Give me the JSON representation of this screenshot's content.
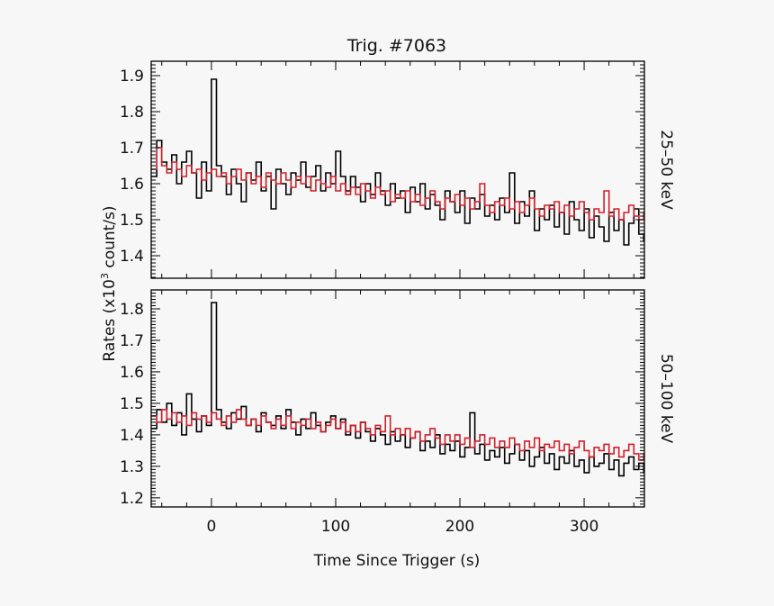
{
  "chart_data": {
    "type": "line",
    "title": "Trig. #7063",
    "xlabel": "Time Since Trigger (s)",
    "ylabel": "Rates (x10³ count/s)",
    "ylabel_parts": {
      "pre": "Rates (x10",
      "sup": "3",
      "post": " count/s)"
    },
    "xlim": [
      -48.5,
      348.5
    ],
    "xticks": [
      0,
      100,
      200,
      300
    ],
    "x_start": -48,
    "bin_width": 4,
    "grid": false,
    "colors": {
      "black": "#000000",
      "red": "#d0202a"
    },
    "panels": [
      {
        "label": "25–50 keV",
        "ylim": [
          1.3375,
          1.94
        ],
        "yticks": [
          "1.4",
          "1.5",
          "1.6",
          "1.7",
          "1.8",
          "1.9"
        ],
        "series": [
          {
            "color": "#000000",
            "values": [
              1.62,
              1.72,
              1.66,
              1.64,
              1.68,
              1.6,
              1.66,
              1.69,
              1.63,
              1.56,
              1.66,
              1.58,
              1.89,
              1.65,
              1.62,
              1.57,
              1.64,
              1.6,
              1.55,
              1.63,
              1.61,
              1.66,
              1.58,
              1.62,
              1.53,
              1.64,
              1.6,
              1.57,
              1.63,
              1.61,
              1.66,
              1.59,
              1.62,
              1.65,
              1.58,
              1.63,
              1.6,
              1.69,
              1.62,
              1.58,
              1.62,
              1.59,
              1.55,
              1.6,
              1.57,
              1.63,
              1.58,
              1.54,
              1.6,
              1.56,
              1.58,
              1.52,
              1.59,
              1.55,
              1.6,
              1.53,
              1.57,
              1.54,
              1.5,
              1.58,
              1.55,
              1.52,
              1.58,
              1.49,
              1.56,
              1.53,
              1.57,
              1.51,
              1.54,
              1.5,
              1.56,
              1.52,
              1.63,
              1.49,
              1.55,
              1.51,
              1.58,
              1.47,
              1.53,
              1.5,
              1.54,
              1.48,
              1.52,
              1.46,
              1.55,
              1.5,
              1.47,
              1.53,
              1.45,
              1.51,
              1.48,
              1.44,
              1.52,
              1.47,
              1.5,
              1.43,
              1.49,
              1.53,
              1.46,
              1.44
            ]
          },
          {
            "color": "#d0202a",
            "values": [
              1.64,
              1.7,
              1.65,
              1.63,
              1.66,
              1.64,
              1.62,
              1.65,
              1.63,
              1.64,
              1.61,
              1.63,
              1.64,
              1.62,
              1.63,
              1.6,
              1.62,
              1.64,
              1.61,
              1.63,
              1.6,
              1.62,
              1.59,
              1.63,
              1.61,
              1.6,
              1.63,
              1.61,
              1.59,
              1.62,
              1.6,
              1.62,
              1.58,
              1.61,
              1.6,
              1.59,
              1.62,
              1.58,
              1.6,
              1.57,
              1.59,
              1.57,
              1.6,
              1.58,
              1.56,
              1.59,
              1.57,
              1.58,
              1.55,
              1.57,
              1.56,
              1.58,
              1.55,
              1.57,
              1.54,
              1.56,
              1.58,
              1.55,
              1.53,
              1.56,
              1.55,
              1.57,
              1.54,
              1.56,
              1.53,
              1.55,
              1.6,
              1.54,
              1.52,
              1.55,
              1.54,
              1.56,
              1.53,
              1.55,
              1.52,
              1.54,
              1.56,
              1.53,
              1.51,
              1.54,
              1.53,
              1.55,
              1.52,
              1.54,
              1.51,
              1.53,
              1.55,
              1.52,
              1.5,
              1.53,
              1.52,
              1.58,
              1.51,
              1.53,
              1.5,
              1.52,
              1.54,
              1.51,
              1.5,
              1.52
            ]
          }
        ]
      },
      {
        "label": "50–100 keV",
        "ylim": [
          1.171,
          1.86
        ],
        "yticks": [
          "1.2",
          "1.3",
          "1.4",
          "1.5",
          "1.6",
          "1.7",
          "1.8"
        ],
        "series": [
          {
            "color": "#000000",
            "values": [
              1.42,
              1.48,
              1.44,
              1.5,
              1.43,
              1.47,
              1.4,
              1.53,
              1.45,
              1.41,
              1.46,
              1.43,
              1.82,
              1.48,
              1.44,
              1.42,
              1.47,
              1.45,
              1.49,
              1.43,
              1.45,
              1.41,
              1.47,
              1.44,
              1.43,
              1.46,
              1.42,
              1.48,
              1.44,
              1.4,
              1.45,
              1.42,
              1.47,
              1.43,
              1.41,
              1.44,
              1.46,
              1.42,
              1.45,
              1.4,
              1.43,
              1.39,
              1.44,
              1.41,
              1.38,
              1.42,
              1.4,
              1.37,
              1.41,
              1.38,
              1.4,
              1.36,
              1.39,
              1.41,
              1.35,
              1.38,
              1.36,
              1.4,
              1.34,
              1.37,
              1.35,
              1.38,
              1.33,
              1.36,
              1.47,
              1.34,
              1.37,
              1.32,
              1.35,
              1.33,
              1.36,
              1.31,
              1.34,
              1.37,
              1.32,
              1.35,
              1.3,
              1.33,
              1.36,
              1.31,
              1.34,
              1.29,
              1.33,
              1.31,
              1.35,
              1.3,
              1.32,
              1.28,
              1.33,
              1.3,
              1.31,
              1.34,
              1.29,
              1.32,
              1.27,
              1.31,
              1.33,
              1.29,
              1.31,
              1.28
            ]
          },
          {
            "color": "#d0202a",
            "values": [
              1.46,
              1.44,
              1.48,
              1.45,
              1.47,
              1.44,
              1.46,
              1.43,
              1.47,
              1.45,
              1.46,
              1.44,
              1.47,
              1.45,
              1.43,
              1.46,
              1.44,
              1.48,
              1.45,
              1.43,
              1.45,
              1.43,
              1.46,
              1.44,
              1.42,
              1.45,
              1.43,
              1.46,
              1.42,
              1.44,
              1.43,
              1.45,
              1.42,
              1.44,
              1.41,
              1.43,
              1.45,
              1.42,
              1.44,
              1.41,
              1.43,
              1.41,
              1.44,
              1.42,
              1.4,
              1.43,
              1.41,
              1.46,
              1.4,
              1.42,
              1.4,
              1.42,
              1.39,
              1.41,
              1.38,
              1.4,
              1.42,
              1.39,
              1.37,
              1.4,
              1.38,
              1.4,
              1.37,
              1.39,
              1.36,
              1.38,
              1.4,
              1.37,
              1.39,
              1.36,
              1.38,
              1.36,
              1.39,
              1.37,
              1.35,
              1.38,
              1.36,
              1.39,
              1.35,
              1.37,
              1.36,
              1.38,
              1.35,
              1.37,
              1.34,
              1.36,
              1.38,
              1.35,
              1.33,
              1.36,
              1.35,
              1.37,
              1.34,
              1.36,
              1.33,
              1.35,
              1.37,
              1.34,
              1.32,
              1.34
            ]
          }
        ]
      }
    ]
  }
}
